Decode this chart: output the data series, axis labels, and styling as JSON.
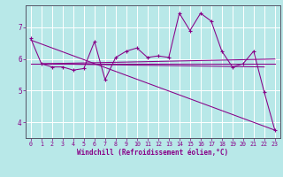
{
  "xlabel": "Windchill (Refroidissement éolien,°C)",
  "background_color": "#b8e8e8",
  "line_color": "#880088",
  "grid_color": "#aadddd",
  "xlim": [
    -0.5,
    23.5
  ],
  "ylim": [
    3.5,
    7.7
  ],
  "yticks": [
    4,
    5,
    6,
    7
  ],
  "xticks": [
    0,
    1,
    2,
    3,
    4,
    5,
    6,
    7,
    8,
    9,
    10,
    11,
    12,
    13,
    14,
    15,
    16,
    17,
    18,
    19,
    20,
    21,
    22,
    23
  ],
  "series1_x": [
    0,
    1,
    2,
    3,
    4,
    5,
    6,
    7,
    8,
    9,
    10,
    11,
    12,
    13,
    14,
    15,
    16,
    17,
    18,
    19,
    20,
    21,
    22,
    23
  ],
  "series1_y": [
    6.65,
    5.85,
    5.75,
    5.75,
    5.65,
    5.7,
    6.55,
    5.35,
    6.05,
    6.25,
    6.35,
    6.05,
    6.1,
    6.05,
    7.45,
    6.9,
    7.45,
    7.2,
    6.25,
    5.75,
    5.85,
    6.25,
    4.95,
    3.75
  ],
  "line2_x": [
    0,
    23
  ],
  "line2_y": [
    5.85,
    5.85
  ],
  "line3_x": [
    1,
    23
  ],
  "line3_y": [
    5.85,
    6.0
  ],
  "line4_x": [
    1,
    22
  ],
  "line4_y": [
    5.85,
    5.75
  ],
  "line5_x": [
    0,
    23
  ],
  "line5_y": [
    6.6,
    3.75
  ]
}
